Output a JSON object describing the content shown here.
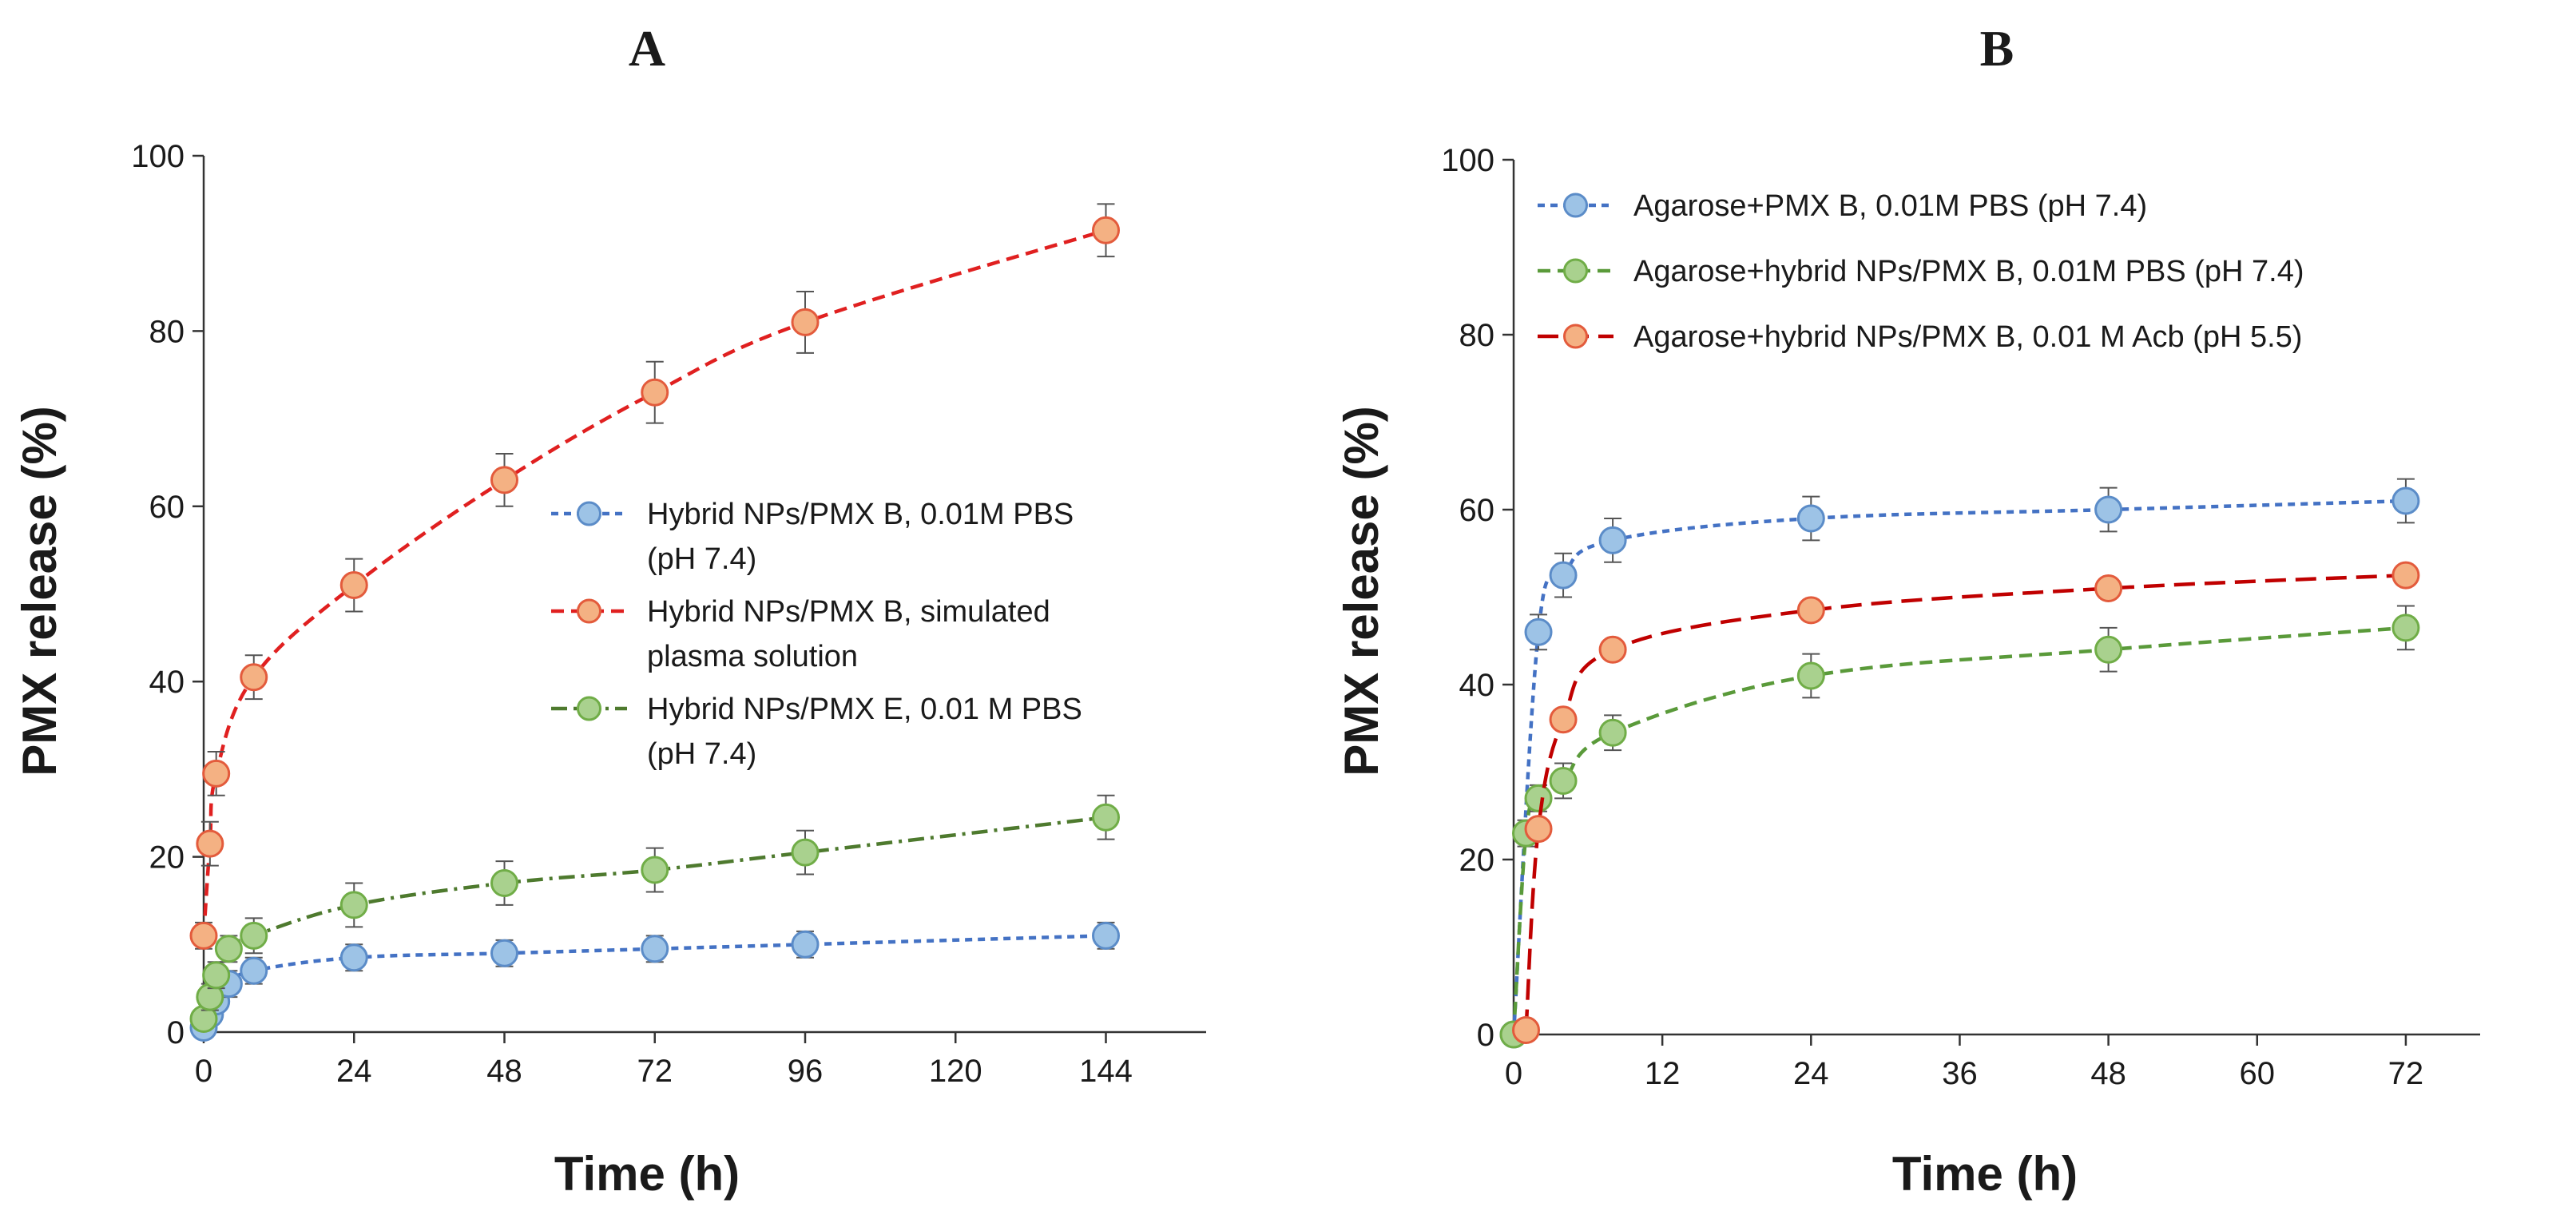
{
  "chart_data": [
    {
      "type": "line",
      "panel_label": "A",
      "title": "",
      "xlabel": "Time (h)",
      "ylabel": "PMX release (%)",
      "xlim": [
        0,
        160
      ],
      "ylim": [
        0,
        100
      ],
      "xticks": [
        0,
        24,
        48,
        72,
        96,
        120,
        144
      ],
      "yticks": [
        0,
        20,
        40,
        60,
        80,
        100
      ],
      "grid": false,
      "legend_position": "center-right",
      "series": [
        {
          "name": "Hybrid NPs/PMX B, 0.01M PBS (pH 7.4)",
          "legend_lines": [
            "Hybrid NPs/PMX B, 0.01M PBS",
            "(pH 7.4)"
          ],
          "color": "#4472c4",
          "marker_fill": "#9dc3e6",
          "marker_stroke": "#5b8cc8",
          "line_style": "dotted",
          "x": [
            0,
            1,
            2,
            4,
            8,
            24,
            48,
            72,
            96,
            144
          ],
          "y": [
            0.5,
            2,
            3.5,
            5.5,
            7,
            8.5,
            9,
            9.5,
            10,
            11
          ],
          "error": [
            1,
            1,
            1,
            1.5,
            1.5,
            1.5,
            1.5,
            1.5,
            1.5,
            1.5
          ]
        },
        {
          "name": "Hybrid NPs/PMX B, simulated plasma solution",
          "legend_lines": [
            "Hybrid NPs/PMX B, simulated",
            "plasma solution"
          ],
          "color": "#e02020",
          "marker_fill": "#f4b183",
          "marker_stroke": "#e35b3c",
          "line_style": "dashed",
          "x": [
            0,
            1,
            2,
            8,
            24,
            48,
            72,
            96,
            144
          ],
          "y": [
            11,
            21.5,
            29.5,
            40.5,
            51,
            63,
            73,
            81,
            91.5
          ],
          "error": [
            1.5,
            2.5,
            2.5,
            2.5,
            3,
            3,
            3.5,
            3.5,
            3
          ]
        },
        {
          "name": "Hybrid NPs/PMX E, 0.01 M PBS (pH 7.4)",
          "legend_lines": [
            "Hybrid NPs/PMX E, 0.01 M PBS",
            "(pH 7.4)"
          ],
          "color": "#4e7a2e",
          "marker_fill": "#a9d18e",
          "marker_stroke": "#70ad47",
          "line_style": "dash-dot",
          "x": [
            0,
            1,
            2,
            4,
            8,
            24,
            48,
            72,
            96,
            144
          ],
          "y": [
            1.5,
            4,
            6.5,
            9.5,
            11,
            14.5,
            17,
            18.5,
            20.5,
            24.5
          ],
          "error": [
            1,
            1.5,
            1.5,
            1.5,
            2,
            2.5,
            2.5,
            2.5,
            2.5,
            2.5
          ]
        }
      ]
    },
    {
      "type": "line",
      "panel_label": "B",
      "title": "",
      "xlabel": "Time (h)",
      "ylabel": "PMX release (%)",
      "xlim": [
        0,
        78
      ],
      "ylim": [
        0,
        100
      ],
      "xticks": [
        0,
        12,
        24,
        36,
        48,
        60,
        72
      ],
      "yticks": [
        0,
        20,
        40,
        60,
        80,
        100
      ],
      "grid": false,
      "legend_position": "top",
      "series": [
        {
          "name": "Agarose+PMX B, 0.01M PBS (pH 7.4)",
          "legend_lines": [
            "Agarose+PMX B, 0.01M PBS (pH 7.4)"
          ],
          "color": "#4472c4",
          "marker_fill": "#9dc3e6",
          "marker_stroke": "#5b8cc8",
          "line_style": "dotted",
          "x": [
            0,
            2,
            4,
            8,
            24,
            48,
            72
          ],
          "y": [
            0,
            46,
            52.5,
            56.5,
            59,
            60,
            61
          ],
          "error": [
            0.5,
            2,
            2.5,
            2.5,
            2.5,
            2.5,
            2.5
          ]
        },
        {
          "name": "Agarose+hybrid NPs/PMX B, 0.01M PBS (pH 7.4)",
          "legend_lines": [
            "Agarose+hybrid NPs/PMX B, 0.01M PBS (pH 7.4)"
          ],
          "color": "#5a9a3a",
          "marker_fill": "#a9d18e",
          "marker_stroke": "#70ad47",
          "line_style": "dashed",
          "x": [
            0,
            1,
            2,
            4,
            8,
            24,
            48,
            72
          ],
          "y": [
            0,
            23,
            27,
            29,
            34.5,
            41,
            44,
            46.5
          ],
          "error": [
            0.5,
            1.5,
            1.5,
            2,
            2,
            2.5,
            2.5,
            2.5
          ]
        },
        {
          "name": "Agarose+hybrid NPs/PMX B, 0.01 M Acb (pH 5.5)",
          "legend_lines": [
            "Agarose+hybrid NPs/PMX B, 0.01 M Acb (pH 5.5)"
          ],
          "color": "#c00000",
          "marker_fill": "#f4b183",
          "marker_stroke": "#e35b3c",
          "line_style": "long-dash",
          "x": [
            1,
            2,
            4,
            8,
            24,
            48,
            72
          ],
          "y": [
            0.5,
            23.5,
            36,
            44,
            48.5,
            51,
            52.5
          ],
          "error": [
            0.5,
            1,
            1,
            1,
            1,
            1,
            1
          ]
        }
      ]
    }
  ]
}
